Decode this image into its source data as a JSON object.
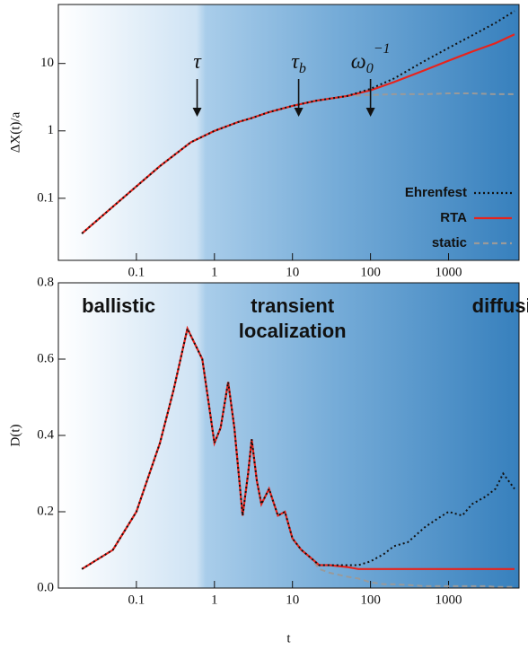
{
  "chart_data": [
    {
      "type": "line",
      "ylabel": "ΔX(t)/a",
      "xlog": true,
      "ylog": true,
      "xlim": [
        0.01,
        8000
      ],
      "ylim": [
        0.012,
        75
      ],
      "xticks": [
        0.1,
        1,
        10,
        100,
        1000
      ],
      "yticks": [
        0.1,
        1,
        10
      ],
      "legend": "lower right",
      "x": [
        0.02,
        0.05,
        0.1,
        0.2,
        0.5,
        1,
        2,
        3,
        5,
        10,
        20,
        50,
        100,
        200,
        500,
        1000,
        2000,
        4000,
        7000
      ],
      "series": [
        {
          "name": "Ehrenfest",
          "color": "#111111",
          "style": "dotted",
          "values": [
            0.03,
            0.075,
            0.15,
            0.3,
            0.68,
            1.0,
            1.35,
            1.55,
            1.9,
            2.35,
            2.8,
            3.3,
            4.2,
            6,
            11,
            17,
            26,
            40,
            60
          ]
        },
        {
          "name": "RTA",
          "color": "#e8231c",
          "style": "solid",
          "values": [
            0.03,
            0.075,
            0.15,
            0.3,
            0.68,
            1.0,
            1.35,
            1.55,
            1.9,
            2.35,
            2.8,
            3.3,
            4.0,
            5.3,
            8,
            11,
            15,
            20,
            27
          ]
        },
        {
          "name": "static",
          "color": "#9a9a9a",
          "style": "dashed",
          "values": [
            0.03,
            0.075,
            0.15,
            0.3,
            0.68,
            1.0,
            1.35,
            1.55,
            1.9,
            2.35,
            2.8,
            3.3,
            3.4,
            3.5,
            3.5,
            3.6,
            3.6,
            3.5,
            3.5
          ]
        }
      ],
      "annotations": [
        {
          "x": 0.6,
          "label": "τ"
        },
        {
          "x": 12,
          "label": "τ",
          "sub": "b"
        },
        {
          "x": 100,
          "label": "ω",
          "sub": "0",
          "sup": "−1"
        }
      ]
    },
    {
      "type": "line",
      "ylabel": "D(t)",
      "xlabel": "t",
      "xlog": true,
      "ylog": false,
      "xlim": [
        0.01,
        8000
      ],
      "ylim": [
        0,
        0.8
      ],
      "xticks": [
        0.1,
        1,
        10,
        100,
        1000
      ],
      "yticks": [
        {
          "value": 0,
          "label": "0.0"
        },
        0.2,
        0.4,
        0.6,
        0.8
      ],
      "x": [
        0.02,
        0.05,
        0.1,
        0.2,
        0.3,
        0.45,
        0.7,
        1,
        1.2,
        1.5,
        1.8,
        2.3,
        2.7,
        3,
        3.5,
        4,
        5,
        6.5,
        8,
        10,
        13,
        17,
        22,
        30,
        50,
        70,
        100,
        150,
        200,
        300,
        500,
        700,
        1000,
        1500,
        2000,
        3000,
        4000,
        5000,
        7000
      ],
      "series": [
        {
          "name": "Ehrenfest",
          "color": "#111111",
          "style": "dotted",
          "values": [
            0.05,
            0.1,
            0.2,
            0.38,
            0.52,
            0.68,
            0.6,
            0.38,
            0.42,
            0.54,
            0.42,
            0.19,
            0.3,
            0.39,
            0.28,
            0.22,
            0.26,
            0.19,
            0.2,
            0.13,
            0.1,
            0.08,
            0.06,
            0.06,
            0.06,
            0.06,
            0.07,
            0.09,
            0.11,
            0.12,
            0.16,
            0.18,
            0.2,
            0.19,
            0.22,
            0.24,
            0.26,
            0.3,
            0.26
          ]
        },
        {
          "name": "RTA",
          "color": "#e8231c",
          "style": "solid",
          "values": [
            0.05,
            0.1,
            0.2,
            0.38,
            0.52,
            0.68,
            0.6,
            0.38,
            0.42,
            0.54,
            0.42,
            0.19,
            0.3,
            0.39,
            0.28,
            0.22,
            0.26,
            0.19,
            0.2,
            0.13,
            0.1,
            0.08,
            0.06,
            0.06,
            0.055,
            0.05,
            0.05,
            0.05,
            0.05,
            0.05,
            0.05,
            0.05,
            0.05,
            0.05,
            0.05,
            0.05,
            0.05,
            0.05,
            0.05
          ]
        },
        {
          "name": "static",
          "color": "#9a9a9a",
          "style": "dashed",
          "values": [
            0.05,
            0.1,
            0.2,
            0.38,
            0.52,
            0.68,
            0.6,
            0.38,
            0.42,
            0.54,
            0.42,
            0.19,
            0.3,
            0.39,
            0.28,
            0.22,
            0.26,
            0.19,
            0.2,
            0.13,
            0.1,
            0.08,
            0.05,
            0.04,
            0.03,
            0.025,
            0.015,
            0.01,
            0.01,
            0.008,
            0.005,
            0.005,
            0.005,
            0.005,
            0.005,
            0.005,
            0.003,
            0.003,
            0.003
          ]
        }
      ],
      "regions": [
        {
          "x": 0.02,
          "lines": [
            "ballistic"
          ],
          "color": "#666666"
        },
        {
          "x": 10,
          "lines": [
            "transient",
            "localization"
          ],
          "color": "#111111"
        },
        {
          "x": 2000,
          "lines": [
            "diffusive"
          ],
          "color": "#ffffff"
        }
      ]
    }
  ]
}
